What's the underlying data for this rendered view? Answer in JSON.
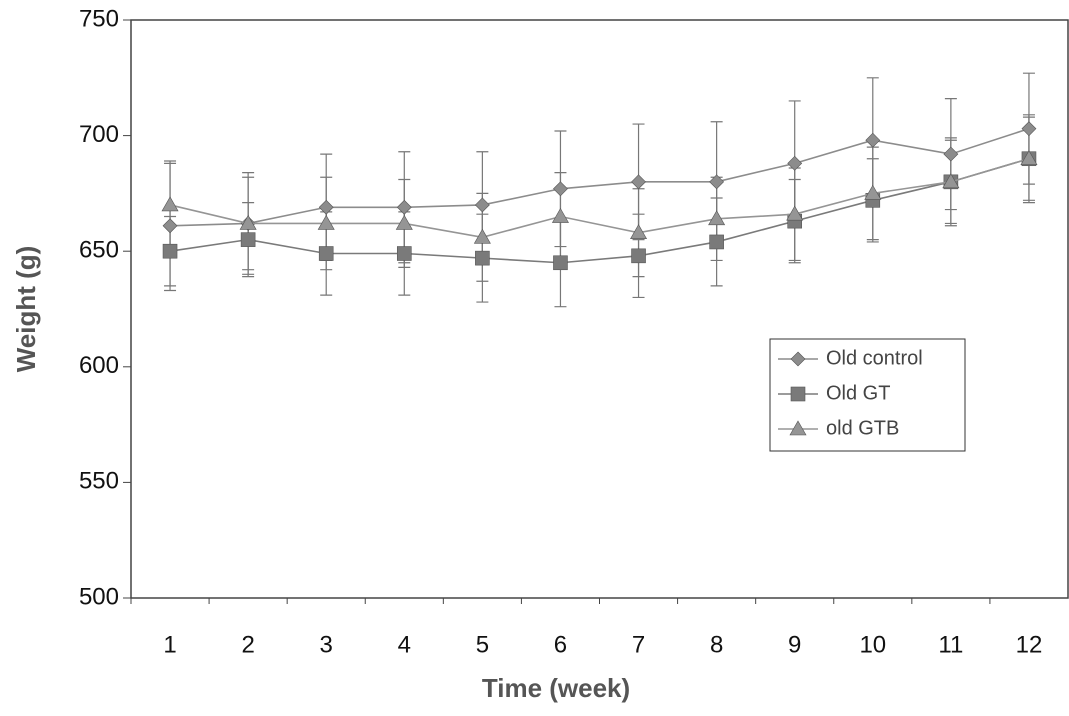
{
  "chart_data": {
    "type": "line",
    "x_label": "Time (week)",
    "y_label": "Weight (g)",
    "categories": [
      "1",
      "2",
      "3",
      "4",
      "5",
      "6",
      "7",
      "8",
      "9",
      "10",
      "11",
      "12"
    ],
    "series": [
      {
        "name": "Old control",
        "color": "#8c8c8c",
        "marker": "diamond",
        "values": [
          661,
          662,
          669,
          669,
          670,
          677,
          680,
          680,
          688,
          698,
          692,
          703
        ],
        "errors": [
          28,
          22,
          23,
          24,
          23,
          25,
          25,
          26,
          27,
          27,
          24,
          24
        ]
      },
      {
        "name": "Old GT",
        "color": "#7a7a7a",
        "marker": "square",
        "values": [
          650,
          655,
          649,
          649,
          647,
          645,
          648,
          654,
          663,
          672,
          680,
          690
        ],
        "errors": [
          15,
          16,
          18,
          18,
          19,
          19,
          18,
          19,
          18,
          18,
          18,
          19
        ]
      },
      {
        "name": "old GTB",
        "color": "#959595",
        "marker": "triangle",
        "values": [
          670,
          662,
          662,
          662,
          656,
          665,
          658,
          664,
          666,
          675,
          680,
          690
        ],
        "errors": [
          18,
          20,
          20,
          19,
          19,
          19,
          19,
          18,
          20,
          20,
          19,
          18
        ]
      }
    ],
    "ylim": [
      500,
      750
    ],
    "yticks": [
      500,
      550,
      600,
      650,
      700,
      750
    ],
    "grid": false,
    "legend": "center-right"
  }
}
